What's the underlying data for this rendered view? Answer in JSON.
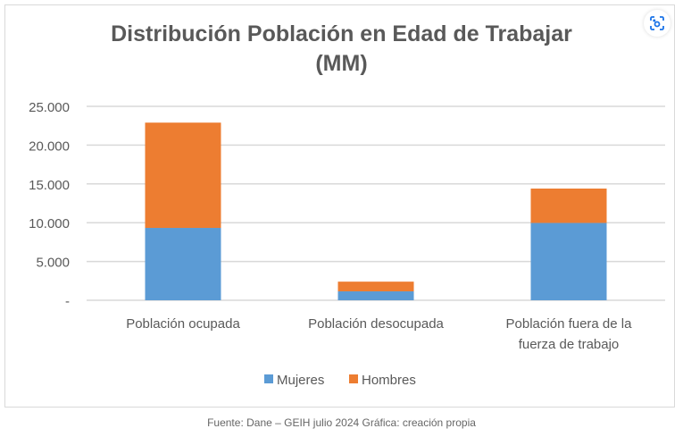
{
  "chart_data": {
    "type": "bar",
    "stacked": true,
    "title": "Distribución Población en Edad de Trabajar (MM)",
    "title_lines": [
      "Distribución Población en Edad de Trabajar",
      "(MM)"
    ],
    "categories": [
      "Población ocupada",
      "Población desocupada",
      "Población fuera de la fuerza de trabajo"
    ],
    "category_lines": [
      [
        "Población ocupada"
      ],
      [
        "Población desocupada"
      ],
      [
        "Población fuera de la",
        "fuerza de trabajo"
      ]
    ],
    "series": [
      {
        "name": "Mujeres",
        "color": "#5b9bd5",
        "values": [
          9330,
          1150,
          9970
        ]
      },
      {
        "name": "Hombres",
        "color": "#ed7d31",
        "values": [
          13570,
          1250,
          4430
        ]
      }
    ],
    "yticks": [
      0,
      5000,
      10000,
      15000,
      20000,
      25000
    ],
    "ytick_labels": [
      "-",
      "5.000",
      "10.000",
      "15.000",
      "20.000",
      "25.000"
    ],
    "ylim": [
      0,
      25000
    ],
    "grid": true,
    "legend_position": "bottom",
    "xlabel": "",
    "ylabel": ""
  },
  "source_text": "Fuente: Dane – GEIH julio 2024 Gráfica: creación propia",
  "lens_icon": "visual-search-icon"
}
